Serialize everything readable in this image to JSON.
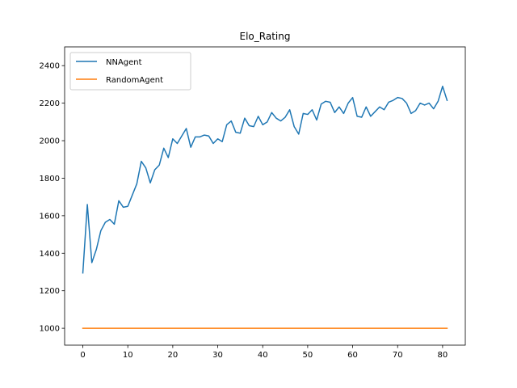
{
  "chart_data": {
    "type": "line",
    "title": "Elo_Rating",
    "xlabel": "",
    "ylabel": "",
    "xlim": [
      -4.05,
      85.05
    ],
    "ylim": [
      910,
      2500
    ],
    "xticks": [
      0,
      10,
      20,
      30,
      40,
      50,
      60,
      70,
      80
    ],
    "yticks": [
      1000,
      1200,
      1400,
      1600,
      1800,
      2000,
      2200,
      2400
    ],
    "grid": false,
    "legend_position": "top-left",
    "series": [
      {
        "name": "NNAgent",
        "color": "#1f77b4",
        "x": [
          0,
          1,
          2,
          3,
          4,
          5,
          6,
          7,
          8,
          9,
          10,
          11,
          12,
          13,
          14,
          15,
          16,
          17,
          18,
          19,
          20,
          21,
          22,
          23,
          24,
          25,
          26,
          27,
          28,
          29,
          30,
          31,
          32,
          33,
          34,
          35,
          36,
          37,
          38,
          39,
          40,
          41,
          42,
          43,
          44,
          45,
          46,
          47,
          48,
          49,
          50,
          51,
          52,
          53,
          54,
          55,
          56,
          57,
          58,
          59,
          60,
          61,
          62,
          63,
          64,
          65,
          66,
          67,
          68,
          69,
          70,
          71,
          72,
          73,
          74,
          75,
          76,
          77,
          78,
          79,
          80,
          81
        ],
        "values": [
          1295,
          1660,
          1350,
          1420,
          1520,
          1565,
          1580,
          1555,
          1680,
          1645,
          1650,
          1710,
          1770,
          1890,
          1855,
          1775,
          1845,
          1870,
          1960,
          1910,
          2010,
          1985,
          2025,
          2065,
          1965,
          2020,
          2020,
          2030,
          2025,
          1985,
          2010,
          1995,
          2085,
          2105,
          2045,
          2040,
          2120,
          2080,
          2075,
          2130,
          2085,
          2100,
          2150,
          2120,
          2105,
          2125,
          2165,
          2075,
          2035,
          2145,
          2140,
          2165,
          2110,
          2195,
          2210,
          2205,
          2150,
          2180,
          2145,
          2200,
          2230,
          2130,
          2125,
          2180,
          2130,
          2155,
          2180,
          2165,
          2205,
          2215,
          2230,
          2225,
          2200,
          2145,
          2160,
          2200,
          2190,
          2200,
          2170,
          2210,
          2290,
          2215
        ]
      },
      {
        "name": "RandomAgent",
        "color": "#ff7f0e",
        "x": [
          0,
          81
        ],
        "values": [
          1000,
          1000
        ]
      }
    ]
  }
}
